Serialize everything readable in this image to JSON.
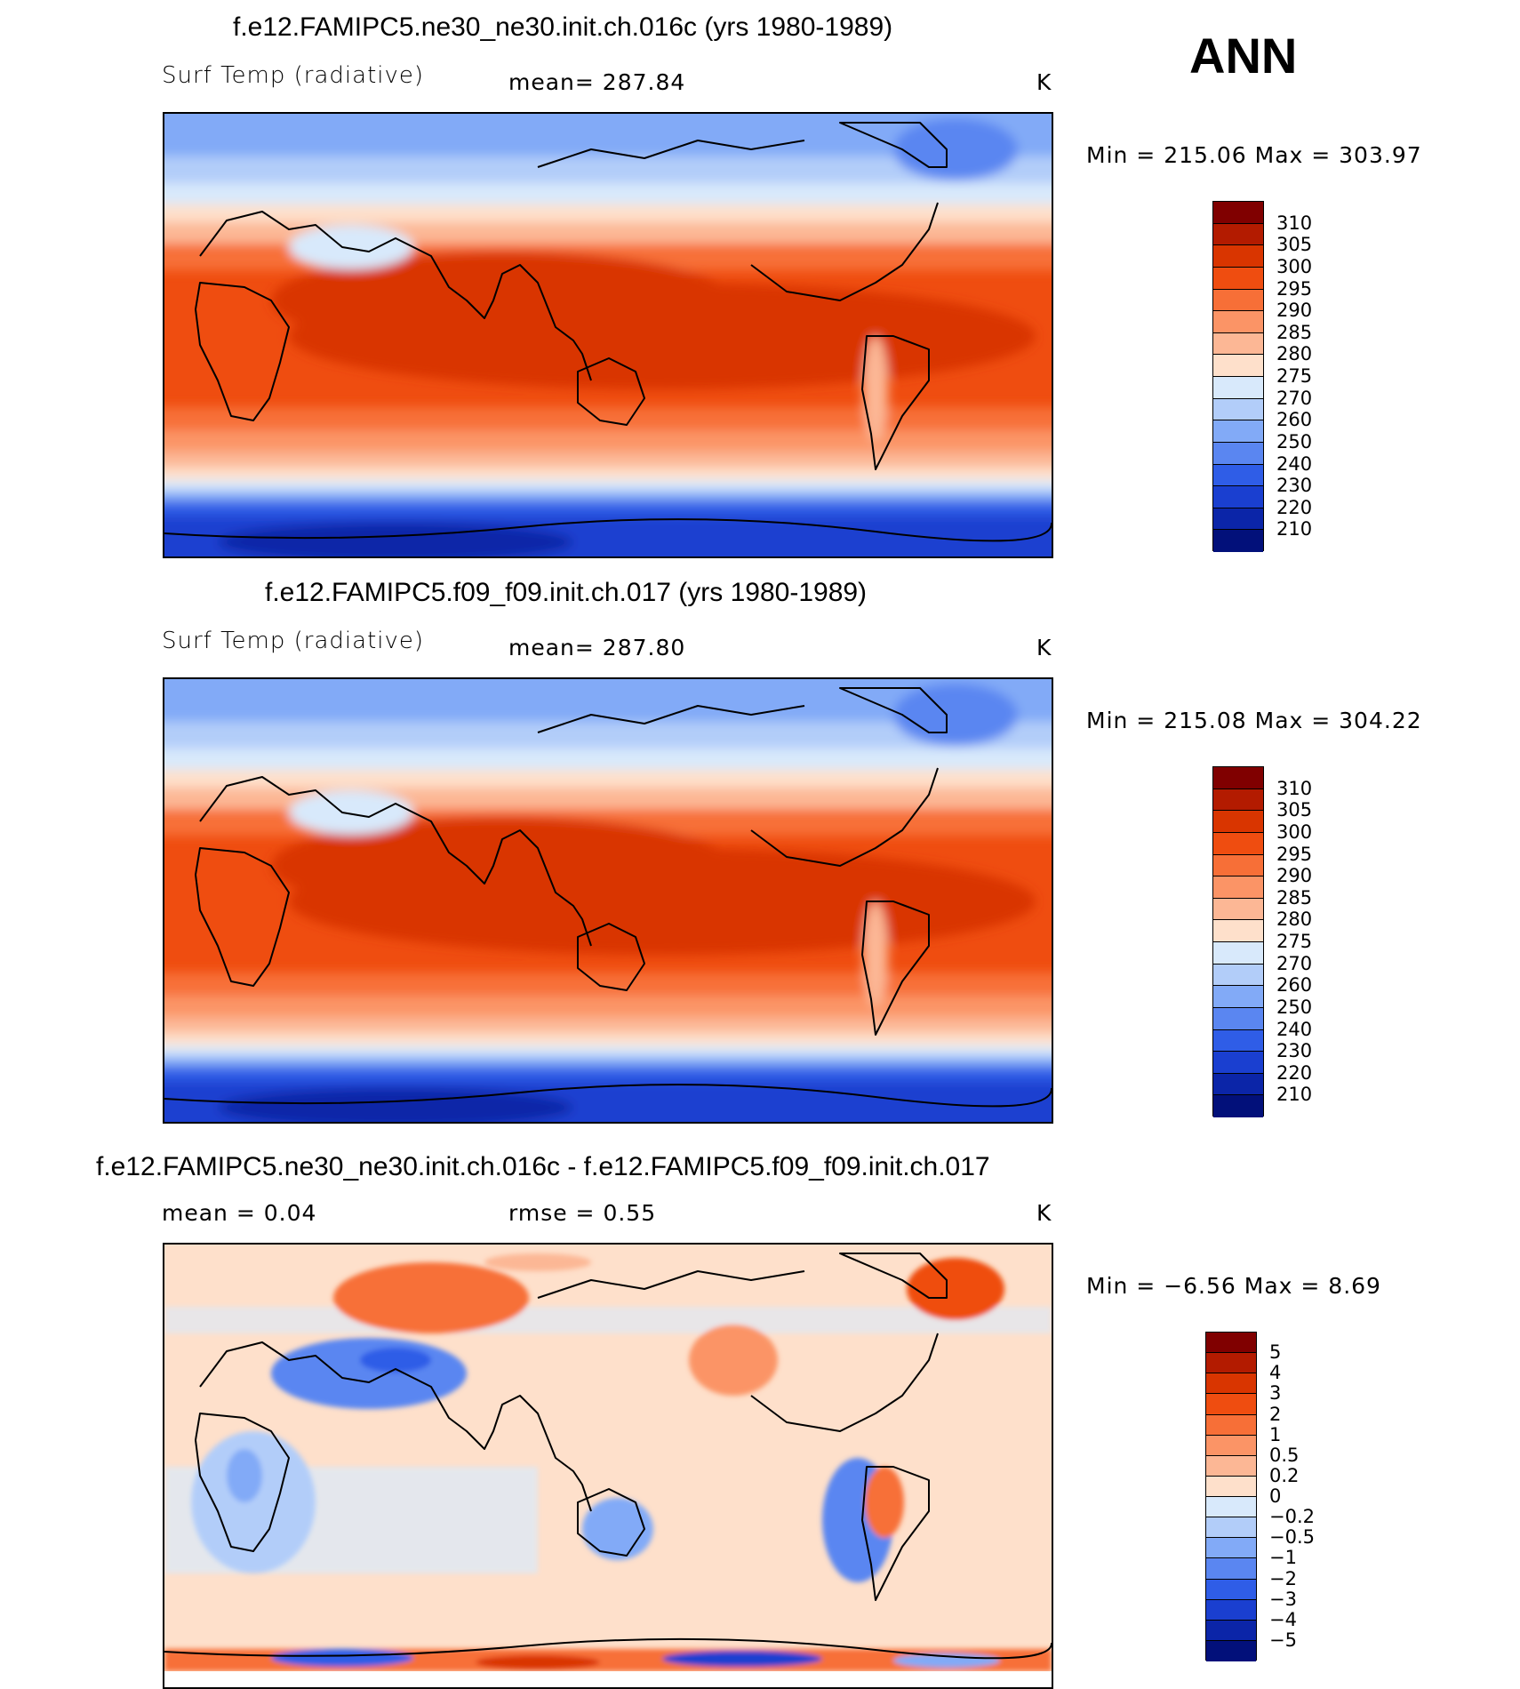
{
  "season": "ANN",
  "units": "K",
  "panels": [
    {
      "title": "f.e12.FAMIPC5.ne30_ne30.init.ch.016c (yrs 1980-1989)",
      "variable": "Surf Temp (radiative)",
      "mean_text": "mean=  287.84",
      "units": "K",
      "minmax_text": "Min  =  215.06  Max  =  303.97"
    },
    {
      "title": "f.e12.FAMIPC5.f09_f09.init.ch.017 (yrs 1980-1989)",
      "variable": "Surf Temp (radiative)",
      "mean_text": "mean=  287.80",
      "units": "K",
      "minmax_text": "Min  =  215.08  Max  =  304.22"
    },
    {
      "title": "f.e12.FAMIPC5.ne30_ne30.init.ch.016c - f.e12.FAMIPC5.f09_f09.init.ch.017",
      "mean_text": "mean  =      0.04",
      "rmse_text": "rmse  =      0.55",
      "units": "K",
      "minmax_text": "Min  =     −6.56  Max  =      8.69"
    }
  ],
  "colorbars": {
    "abs": {
      "levels": [
        "310",
        "305",
        "300",
        "295",
        "290",
        "285",
        "280",
        "275",
        "270",
        "260",
        "250",
        "240",
        "230",
        "220",
        "210"
      ],
      "colors": [
        "#800000",
        "#b31b00",
        "#d93500",
        "#ef4d10",
        "#f76f37",
        "#fb9466",
        "#fcb795",
        "#fee0cb",
        "#d8e9fb",
        "#b2cdf9",
        "#82aaf7",
        "#5a86f1",
        "#2f5de7",
        "#1a3fd0",
        "#0b25a8",
        "#02107a"
      ]
    },
    "diff": {
      "levels": [
        "5",
        "4",
        "3",
        "2",
        "1",
        "0.5",
        "0.2",
        "0",
        "−0.2",
        "−0.5",
        "−1",
        "−2",
        "−3",
        "−4",
        "−5"
      ],
      "colors": [
        "#800000",
        "#b31b00",
        "#d93500",
        "#ef4d10",
        "#f76f37",
        "#fb9466",
        "#fcb795",
        "#fee0cb",
        "#d8e9fb",
        "#b2cdf9",
        "#82aaf7",
        "#5a86f1",
        "#2f5de7",
        "#1a3fd0",
        "#0b25a8",
        "#02107a"
      ]
    }
  }
}
